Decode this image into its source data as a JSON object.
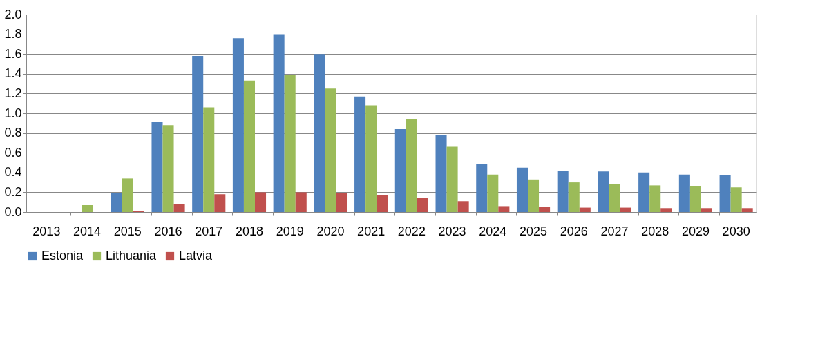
{
  "chart_data": {
    "type": "bar",
    "categories": [
      "2013",
      "2014",
      "2015",
      "2016",
      "2017",
      "2018",
      "2019",
      "2020",
      "2021",
      "2022",
      "2023",
      "2024",
      "2025",
      "2026",
      "2027",
      "2028",
      "2029",
      "2030"
    ],
    "series": [
      {
        "name": "Estonia",
        "color": "#4f81bd",
        "values": [
          0,
          0,
          0.19,
          0.91,
          1.58,
          1.76,
          1.8,
          1.6,
          1.17,
          0.84,
          0.78,
          0.49,
          0.45,
          0.42,
          0.41,
          0.4,
          0.38,
          0.37
        ]
      },
      {
        "name": "Lithuania",
        "color": "#9bbb59",
        "values": [
          0,
          0.07,
          0.34,
          0.88,
          1.06,
          1.33,
          1.39,
          1.25,
          1.08,
          0.94,
          0.66,
          0.38,
          0.33,
          0.3,
          0.28,
          0.27,
          0.26,
          0.25
        ]
      },
      {
        "name": "Latvia",
        "color": "#c0504d",
        "values": [
          0,
          0,
          0.01,
          0.08,
          0.18,
          0.2,
          0.2,
          0.19,
          0.17,
          0.14,
          0.11,
          0.06,
          0.05,
          0.045,
          0.045,
          0.04,
          0.04,
          0.04
        ]
      }
    ],
    "ylim": [
      0,
      2.0
    ],
    "yticks": [
      {
        "value": 0,
        "label": "0.0"
      },
      {
        "value": 0.2,
        "label": "0.2"
      },
      {
        "value": 0.4,
        "label": "0.4"
      },
      {
        "value": 0.6,
        "label": "0.6"
      },
      {
        "value": 0.8,
        "label": "0.8"
      },
      {
        "value": 1.0,
        "label": "1.0"
      },
      {
        "value": 1.2,
        "label": "1.2"
      },
      {
        "value": 1.4,
        "label": "1.4"
      },
      {
        "value": 1.6,
        "label": "1.6"
      },
      {
        "value": 1.8,
        "label": "1.8"
      },
      {
        "value": 2.0,
        "label": "2.0"
      }
    ],
    "grid": "y",
    "legend": "bottom"
  }
}
